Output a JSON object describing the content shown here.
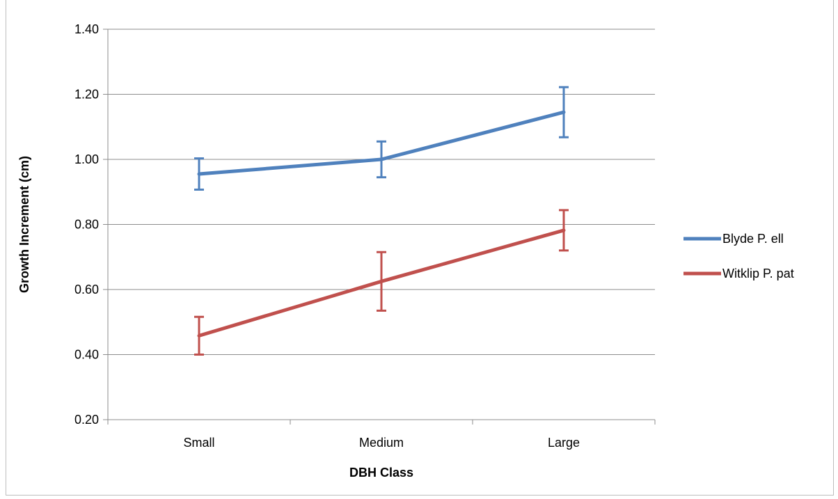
{
  "chart_data": {
    "type": "line",
    "title": "",
    "xlabel": "DBH Class",
    "ylabel": "Growth Increment (cm)",
    "categories": [
      "Small",
      "Medium",
      "Large"
    ],
    "ylim": [
      0.2,
      1.4
    ],
    "yticks": [
      "0.20",
      "0.40",
      "0.60",
      "0.80",
      "1.00",
      "1.20",
      "1.40"
    ],
    "grid": true,
    "legend_position": "right",
    "error_bars": true,
    "series": [
      {
        "name": "Blyde P. ell",
        "color": "#4F81BD",
        "values": [
          0.955,
          1.0,
          1.145
        ],
        "errors": [
          0.048,
          0.055,
          0.077
        ]
      },
      {
        "name": "Witklip P. pat",
        "color": "#C0504D",
        "values": [
          0.458,
          0.625,
          0.782
        ],
        "errors": [
          0.058,
          0.09,
          0.062
        ]
      }
    ]
  }
}
